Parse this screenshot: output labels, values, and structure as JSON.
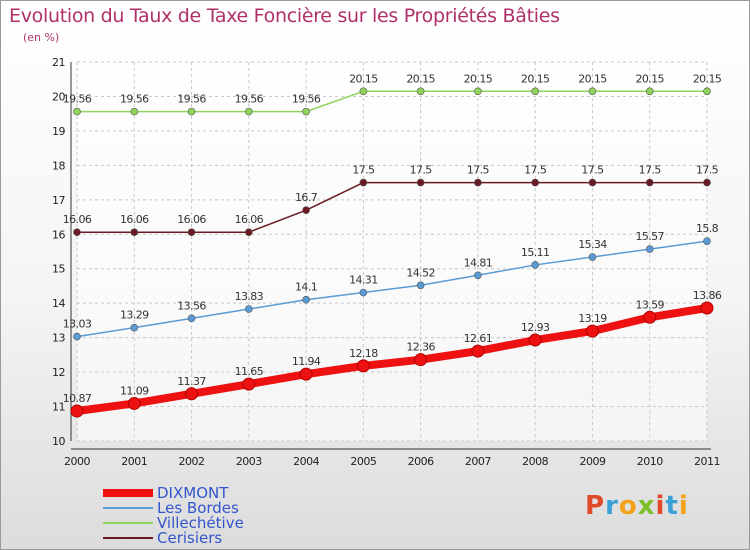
{
  "chart_data": {
    "type": "line",
    "title": "Evolution du Taux de Taxe Foncière sur les Propriétés Bâties",
    "ylabel": "(en %)",
    "xlabel": "",
    "x": [
      "2000",
      "2001",
      "2002",
      "2003",
      "2004",
      "2005",
      "2006",
      "2007",
      "2008",
      "2009",
      "2010",
      "2011"
    ],
    "ylim": [
      10,
      21
    ],
    "yticks": [
      10,
      11,
      12,
      13,
      14,
      15,
      16,
      17,
      18,
      19,
      20,
      21
    ],
    "grid": true,
    "legend_position": "bottom-left",
    "series": [
      {
        "name": "Villechétive",
        "color": "#8fd35a",
        "style": "thin",
        "values": [
          19.56,
          19.56,
          19.56,
          19.56,
          19.56,
          20.15,
          20.15,
          20.15,
          20.15,
          20.15,
          20.15,
          20.15
        ],
        "labels": [
          "19.56",
          "19.56",
          "19.56",
          "19.56",
          "19.56",
          "20.15",
          "20.15",
          "20.15",
          "20.15",
          "20.15",
          "20.15",
          "20.15"
        ]
      },
      {
        "name": "Cerisiers",
        "color": "#6b1a24",
        "style": "thin",
        "values": [
          16.06,
          16.06,
          16.06,
          16.06,
          16.7,
          17.5,
          17.5,
          17.5,
          17.5,
          17.5,
          17.5,
          17.5
        ],
        "labels": [
          "16.06",
          "16.06",
          "16.06",
          "16.06",
          "16.7",
          "17.5",
          "17.5",
          "17.5",
          "17.5",
          "17.5",
          "17.5",
          "17.5"
        ]
      },
      {
        "name": "Les Bordes",
        "color": "#5b9bd5",
        "style": "thin",
        "values": [
          13.03,
          13.29,
          13.56,
          13.83,
          14.1,
          14.31,
          14.52,
          14.81,
          15.11,
          15.34,
          15.57,
          15.8
        ],
        "labels": [
          "13.03",
          "13.29",
          "13.56",
          "13.83",
          "14.1",
          "14.31",
          "14.52",
          "14.81",
          "15.11",
          "15.34",
          "15.57",
          "15.8"
        ]
      },
      {
        "name": "DIXMONT",
        "color": "#ee1111",
        "style": "thick",
        "values": [
          10.87,
          11.09,
          11.37,
          11.65,
          11.94,
          12.18,
          12.36,
          12.61,
          12.93,
          13.19,
          13.59,
          13.86
        ],
        "labels": [
          "10.87",
          "11.09",
          "11.37",
          "11.65",
          "11.94",
          "12.18",
          "12.36",
          "12.61",
          "12.93",
          "13.19",
          "13.59",
          "13.86"
        ]
      }
    ],
    "legend": [
      {
        "name": "DIXMONT",
        "color": "#ee1111",
        "text_color": "#3355cc",
        "style": "thick"
      },
      {
        "name": "Les Bordes",
        "color": "#5b9bd5",
        "text_color": "#3355cc",
        "style": "thin"
      },
      {
        "name": "Villechétive",
        "color": "#8fd35a",
        "text_color": "#3355cc",
        "style": "thin"
      },
      {
        "name": "Cerisiers",
        "color": "#6b1a24",
        "text_color": "#3355cc",
        "style": "thin"
      }
    ]
  },
  "logo": {
    "text": "Proxiti",
    "parts": [
      "P",
      "r",
      "o",
      "x",
      "i",
      "t",
      "i"
    ]
  }
}
